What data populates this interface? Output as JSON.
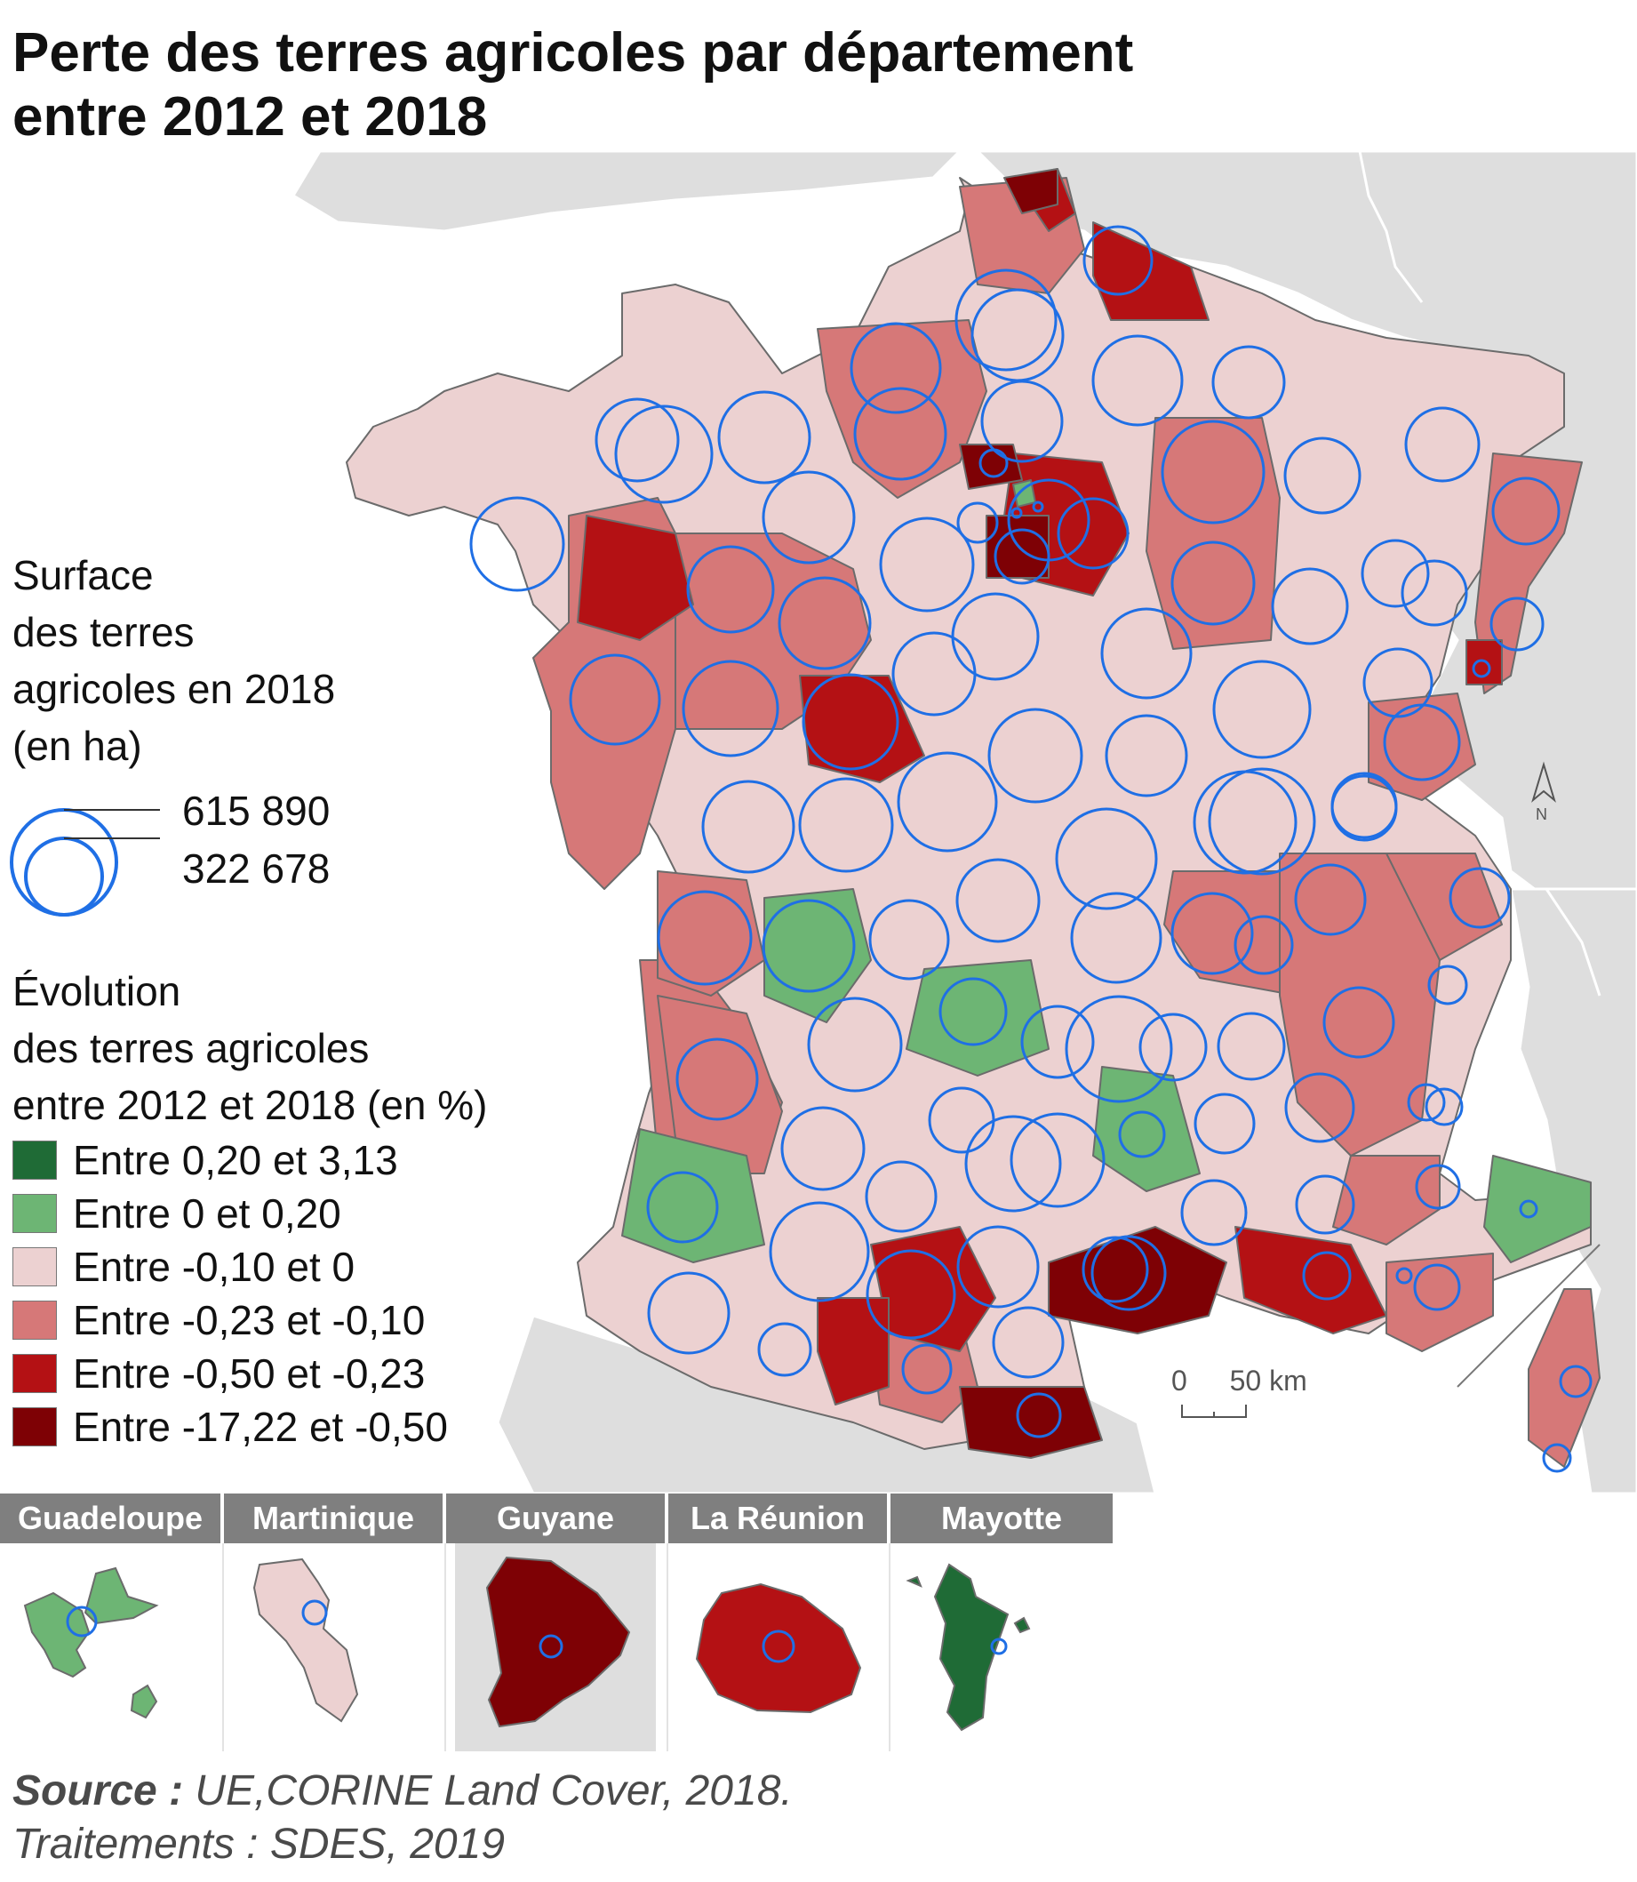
{
  "title": {
    "line1": "Perte des terres agricoles par département",
    "line2": "entre 2012 et 2018"
  },
  "legend_size": {
    "heading": [
      "Surface",
      "des terres",
      "agricoles en 2018",
      "(en ha)"
    ],
    "large_value": "615 890",
    "small_value": "322 678"
  },
  "legend_class": {
    "heading": [
      "Évolution",
      "des terres agricoles",
      "entre 2012 et 2018 (en %)"
    ],
    "classes": [
      {
        "label": "Entre 0,20 et 3,13",
        "color": "#1f6b36"
      },
      {
        "label": "Entre 0 et 0,20",
        "color": "#6db574"
      },
      {
        "label": "Entre -0,10 et 0",
        "color": "#ecd1d1"
      },
      {
        "label": "Entre -0,23 et -0,10",
        "color": "#d67878"
      },
      {
        "label": "Entre -0,50 et -0,23",
        "color": "#b41114"
      },
      {
        "label": "Entre -17,22 et -0,50",
        "color": "#7e0105"
      }
    ]
  },
  "scale_bar": {
    "start": "0",
    "end": "50",
    "unit": "km"
  },
  "north_arrow": {
    "label": "N",
    "icon": "north-arrow-icon"
  },
  "colors": {
    "background_land": "#dedede",
    "sea": "#ffffff",
    "symbol_stroke": "#1f6fe5",
    "border": "#6b6b6b"
  },
  "insets": [
    {
      "name": "Guadeloupe",
      "color": "#6db574"
    },
    {
      "name": "Martinique",
      "color": "#ecd1d1"
    },
    {
      "name": "Guyane",
      "color": "#7e0105"
    },
    {
      "name": "La Réunion",
      "color": "#b41114"
    },
    {
      "name": "Mayotte",
      "color": "#1f6b36"
    }
  ],
  "source": {
    "label": "Source :",
    "text": "UE,CORINE Land Cover, 2018.",
    "line2": "Traitements : SDES, 2019"
  }
}
